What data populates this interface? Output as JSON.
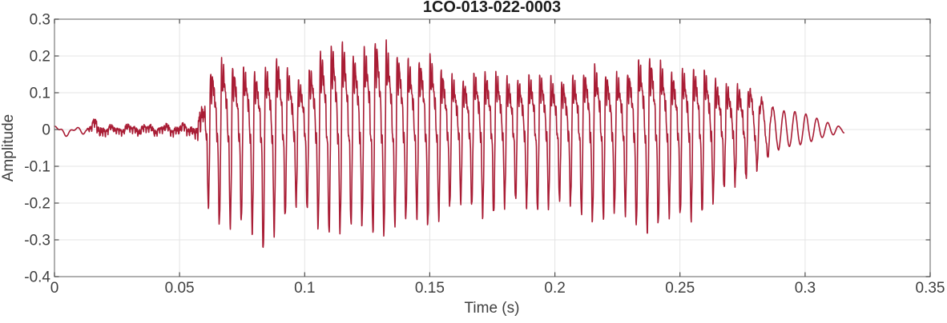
{
  "chart_data": {
    "type": "line",
    "title": "1CO-013-022-0003",
    "xlabel": "Time (s)",
    "ylabel": "Amplitude",
    "xlim": [
      0,
      0.35
    ],
    "ylim": [
      -0.4,
      0.3
    ],
    "xticks": [
      0,
      0.05,
      0.1,
      0.15,
      0.2,
      0.25,
      0.3,
      0.35
    ],
    "xtick_labels": [
      "0",
      "0.05",
      "0.1",
      "0.15",
      "0.2",
      "0.25",
      "0.3",
      "0.35"
    ],
    "yticks": [
      -0.4,
      -0.3,
      -0.2,
      -0.1,
      0,
      0.1,
      0.2,
      0.3
    ],
    "ytick_labels": [
      "-0.4",
      "-0.3",
      "-0.2",
      "-0.1",
      "0",
      "0.1",
      "0.2",
      "0.3"
    ],
    "grid": true,
    "legend": "none",
    "line_color": "#A91D35",
    "background": "#FFFFFF",
    "grid_color": "#E4E4E4",
    "axes_color": "#858585",
    "tick_color": "#4C4C4C",
    "text_color": "#3F3F3F",
    "title_color": "#1C1C1C",
    "series": [
      {
        "name": "acoustic waveform 1CO-013-022-0003",
        "description": "low-level noise from 0 s to ~0.058 s, voiced burst from ~0.058 s peaking +0.26 at 0.116 s and -0.37 at 0.082 s, sustained ~+0.16/-0.23 through 0.26 s, decaying sinusoidal tail ending ~0.316 s",
        "signal_model": {
          "fundamental_hz": 228,
          "voiced_onset_s": 0.058,
          "end_s": 0.3155,
          "max_amplitude": 0.26,
          "min_amplitude": -0.37,
          "envelope": [
            [
              0.0,
              0.012,
              -0.005
            ],
            [
              0.003,
              0.008,
              -0.022
            ],
            [
              0.006,
              0.006,
              -0.016
            ],
            [
              0.01,
              0.008,
              -0.012
            ],
            [
              0.013,
              0.016,
              -0.016
            ],
            [
              0.016,
              0.046,
              -0.028
            ],
            [
              0.019,
              0.028,
              -0.032
            ],
            [
              0.023,
              0.018,
              -0.02
            ],
            [
              0.028,
              0.022,
              -0.022
            ],
            [
              0.035,
              0.025,
              -0.024
            ],
            [
              0.042,
              0.022,
              -0.023
            ],
            [
              0.049,
              0.026,
              -0.026
            ],
            [
              0.056,
              0.028,
              -0.028
            ],
            [
              0.058,
              0.07,
              -0.09
            ],
            [
              0.06,
              0.15,
              -0.2
            ],
            [
              0.063,
              0.17,
              -0.24
            ],
            [
              0.068,
              0.19,
              -0.27
            ],
            [
              0.073,
              0.185,
              -0.28
            ],
            [
              0.078,
              0.2,
              -0.3
            ],
            [
              0.082,
              0.16,
              -0.375
            ],
            [
              0.086,
              0.17,
              -0.29
            ],
            [
              0.09,
              0.205,
              -0.27
            ],
            [
              0.094,
              0.17,
              -0.24
            ],
            [
              0.098,
              0.155,
              -0.23
            ],
            [
              0.103,
              0.19,
              -0.26
            ],
            [
              0.108,
              0.22,
              -0.28
            ],
            [
              0.112,
              0.24,
              -0.29
            ],
            [
              0.116,
              0.262,
              -0.3
            ],
            [
              0.12,
              0.235,
              -0.3
            ],
            [
              0.125,
              0.24,
              -0.28
            ],
            [
              0.13,
              0.25,
              -0.29
            ],
            [
              0.134,
              0.23,
              -0.28
            ],
            [
              0.139,
              0.235,
              -0.29
            ],
            [
              0.143,
              0.205,
              -0.26
            ],
            [
              0.148,
              0.21,
              -0.27
            ],
            [
              0.152,
              0.185,
              -0.25
            ],
            [
              0.157,
              0.165,
              -0.235
            ],
            [
              0.162,
              0.155,
              -0.225
            ],
            [
              0.168,
              0.16,
              -0.23
            ],
            [
              0.174,
              0.155,
              -0.24
            ],
            [
              0.18,
              0.165,
              -0.23
            ],
            [
              0.186,
              0.15,
              -0.22
            ],
            [
              0.192,
              0.155,
              -0.225
            ],
            [
              0.198,
              0.145,
              -0.215
            ],
            [
              0.204,
              0.155,
              -0.225
            ],
            [
              0.21,
              0.16,
              -0.24
            ],
            [
              0.216,
              0.17,
              -0.25
            ],
            [
              0.222,
              0.165,
              -0.255
            ],
            [
              0.228,
              0.175,
              -0.26
            ],
            [
              0.234,
              0.19,
              -0.275
            ],
            [
              0.239,
              0.205,
              -0.28
            ],
            [
              0.244,
              0.19,
              -0.27
            ],
            [
              0.249,
              0.18,
              -0.265
            ],
            [
              0.254,
              0.17,
              -0.25
            ],
            [
              0.259,
              0.165,
              -0.23
            ],
            [
              0.264,
              0.15,
              -0.205
            ],
            [
              0.269,
              0.14,
              -0.18
            ],
            [
              0.274,
              0.125,
              -0.15
            ],
            [
              0.279,
              0.105,
              -0.12
            ],
            [
              0.284,
              0.08,
              -0.09
            ],
            [
              0.289,
              0.062,
              -0.066
            ],
            [
              0.294,
              0.055,
              -0.05
            ],
            [
              0.299,
              0.045,
              -0.04
            ],
            [
              0.304,
              0.034,
              -0.03
            ],
            [
              0.309,
              0.022,
              -0.02
            ],
            [
              0.313,
              0.012,
              -0.014
            ],
            [
              0.3155,
              0.002,
              -0.01
            ]
          ]
        }
      }
    ]
  }
}
